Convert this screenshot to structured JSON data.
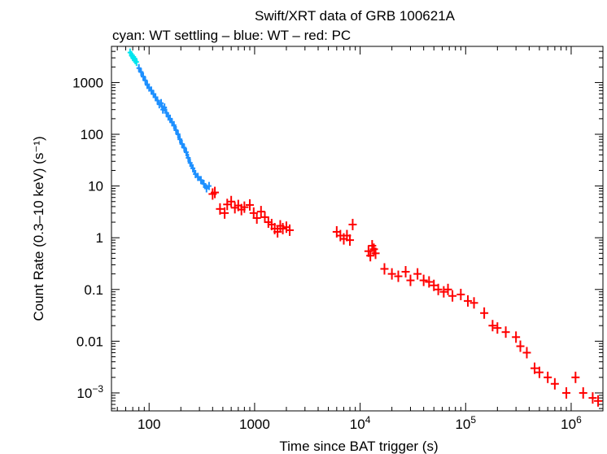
{
  "chart_data": {
    "type": "scatter",
    "title": "Swift/XRT data of GRB 100621A",
    "subtitle": "cyan: WT settling – blue: WT – red: PC",
    "xlabel": "Time since BAT trigger (s)",
    "ylabel": "Count Rate (0.3–10 keV) (s⁻¹)",
    "xscale": "log",
    "yscale": "log",
    "xlim": [
      44,
      2000000
    ],
    "ylim": [
      0.00045,
      5000
    ],
    "x_ticks": [
      {
        "value": 100,
        "label": "100"
      },
      {
        "value": 1000,
        "label": "1000"
      },
      {
        "value": 10000,
        "base": "10",
        "exp": "4"
      },
      {
        "value": 100000,
        "base": "10",
        "exp": "5"
      },
      {
        "value": 1000000,
        "base": "10",
        "exp": "6"
      }
    ],
    "y_ticks": [
      {
        "value": 1000,
        "label": "1000"
      },
      {
        "value": 100,
        "label": "100"
      },
      {
        "value": 10,
        "label": "10"
      },
      {
        "value": 1,
        "label": "1"
      },
      {
        "value": 0.1,
        "label": "0.1"
      },
      {
        "value": 0.01,
        "label": "0.01"
      },
      {
        "value": 0.001,
        "base": "10",
        "exp": "−3"
      }
    ],
    "series": [
      {
        "name": "WT settling",
        "color": "#00e5ee",
        "points": [
          [
            66,
            3800
          ],
          [
            68,
            3400
          ],
          [
            70,
            3100
          ],
          [
            72,
            2900
          ],
          [
            74,
            2700
          ],
          [
            76,
            2500
          ]
        ]
      },
      {
        "name": "WT",
        "color": "#1e90ff",
        "points": [
          [
            80,
            1900
          ],
          [
            84,
            1600
          ],
          [
            88,
            1300
          ],
          [
            92,
            1100
          ],
          [
            96,
            900
          ],
          [
            100,
            800
          ],
          [
            105,
            700
          ],
          [
            110,
            600
          ],
          [
            115,
            520
          ],
          [
            120,
            450
          ],
          [
            125,
            380
          ],
          [
            130,
            400
          ],
          [
            135,
            300
          ],
          [
            140,
            330
          ],
          [
            146,
            260
          ],
          [
            152,
            220
          ],
          [
            158,
            200
          ],
          [
            165,
            170
          ],
          [
            172,
            150
          ],
          [
            180,
            120
          ],
          [
            188,
            100
          ],
          [
            196,
            80
          ],
          [
            205,
            65
          ],
          [
            215,
            55
          ],
          [
            225,
            45
          ],
          [
            235,
            35
          ],
          [
            245,
            28
          ],
          [
            260,
            22
          ],
          [
            275,
            17
          ],
          [
            290,
            15
          ],
          [
            310,
            13
          ],
          [
            330,
            11
          ],
          [
            350,
            9
          ],
          [
            370,
            10
          ]
        ]
      },
      {
        "name": "PC",
        "color": "#ff0000",
        "points": [
          [
            400,
            7.0
          ],
          [
            420,
            7.5
          ],
          [
            470,
            3.6
          ],
          [
            520,
            3.0
          ],
          [
            550,
            4.4
          ],
          [
            600,
            5.0
          ],
          [
            650,
            3.8
          ],
          [
            700,
            4.2
          ],
          [
            750,
            3.5
          ],
          [
            800,
            3.9
          ],
          [
            900,
            4.3
          ],
          [
            980,
            3.0
          ],
          [
            1050,
            2.4
          ],
          [
            1150,
            3.2
          ],
          [
            1250,
            2.5
          ],
          [
            1350,
            2.0
          ],
          [
            1450,
            1.8
          ],
          [
            1550,
            1.5
          ],
          [
            1650,
            1.3
          ],
          [
            1750,
            1.7
          ],
          [
            1850,
            1.5
          ],
          [
            2000,
            1.6
          ],
          [
            2150,
            1.4
          ],
          [
            6000,
            1.3
          ],
          [
            6500,
            1.1
          ],
          [
            7000,
            0.95
          ],
          [
            7500,
            1.1
          ],
          [
            8000,
            0.9
          ],
          [
            8500,
            1.8
          ],
          [
            12000,
            0.55
          ],
          [
            12500,
            0.45
          ],
          [
            13000,
            0.7
          ],
          [
            13500,
            0.6
          ],
          [
            14000,
            0.5
          ],
          [
            17000,
            0.25
          ],
          [
            20000,
            0.2
          ],
          [
            23000,
            0.18
          ],
          [
            27000,
            0.22
          ],
          [
            30000,
            0.15
          ],
          [
            35000,
            0.2
          ],
          [
            40000,
            0.15
          ],
          [
            45000,
            0.14
          ],
          [
            50000,
            0.12
          ],
          [
            55000,
            0.1
          ],
          [
            62000,
            0.09
          ],
          [
            68000,
            0.1
          ],
          [
            75000,
            0.075
          ],
          [
            90000,
            0.08
          ],
          [
            105000,
            0.06
          ],
          [
            120000,
            0.055
          ],
          [
            150000,
            0.035
          ],
          [
            180000,
            0.02
          ],
          [
            200000,
            0.018
          ],
          [
            240000,
            0.015
          ],
          [
            300000,
            0.012
          ],
          [
            330000,
            0.008
          ],
          [
            380000,
            0.006
          ],
          [
            450000,
            0.003
          ],
          [
            500000,
            0.0025
          ],
          [
            600000,
            0.002
          ],
          [
            700000,
            0.0015
          ],
          [
            900000,
            0.001
          ],
          [
            1100000,
            0.002
          ],
          [
            1300000,
            0.001
          ],
          [
            1600000,
            0.0008
          ],
          [
            1800000,
            0.0007
          ]
        ]
      }
    ]
  }
}
